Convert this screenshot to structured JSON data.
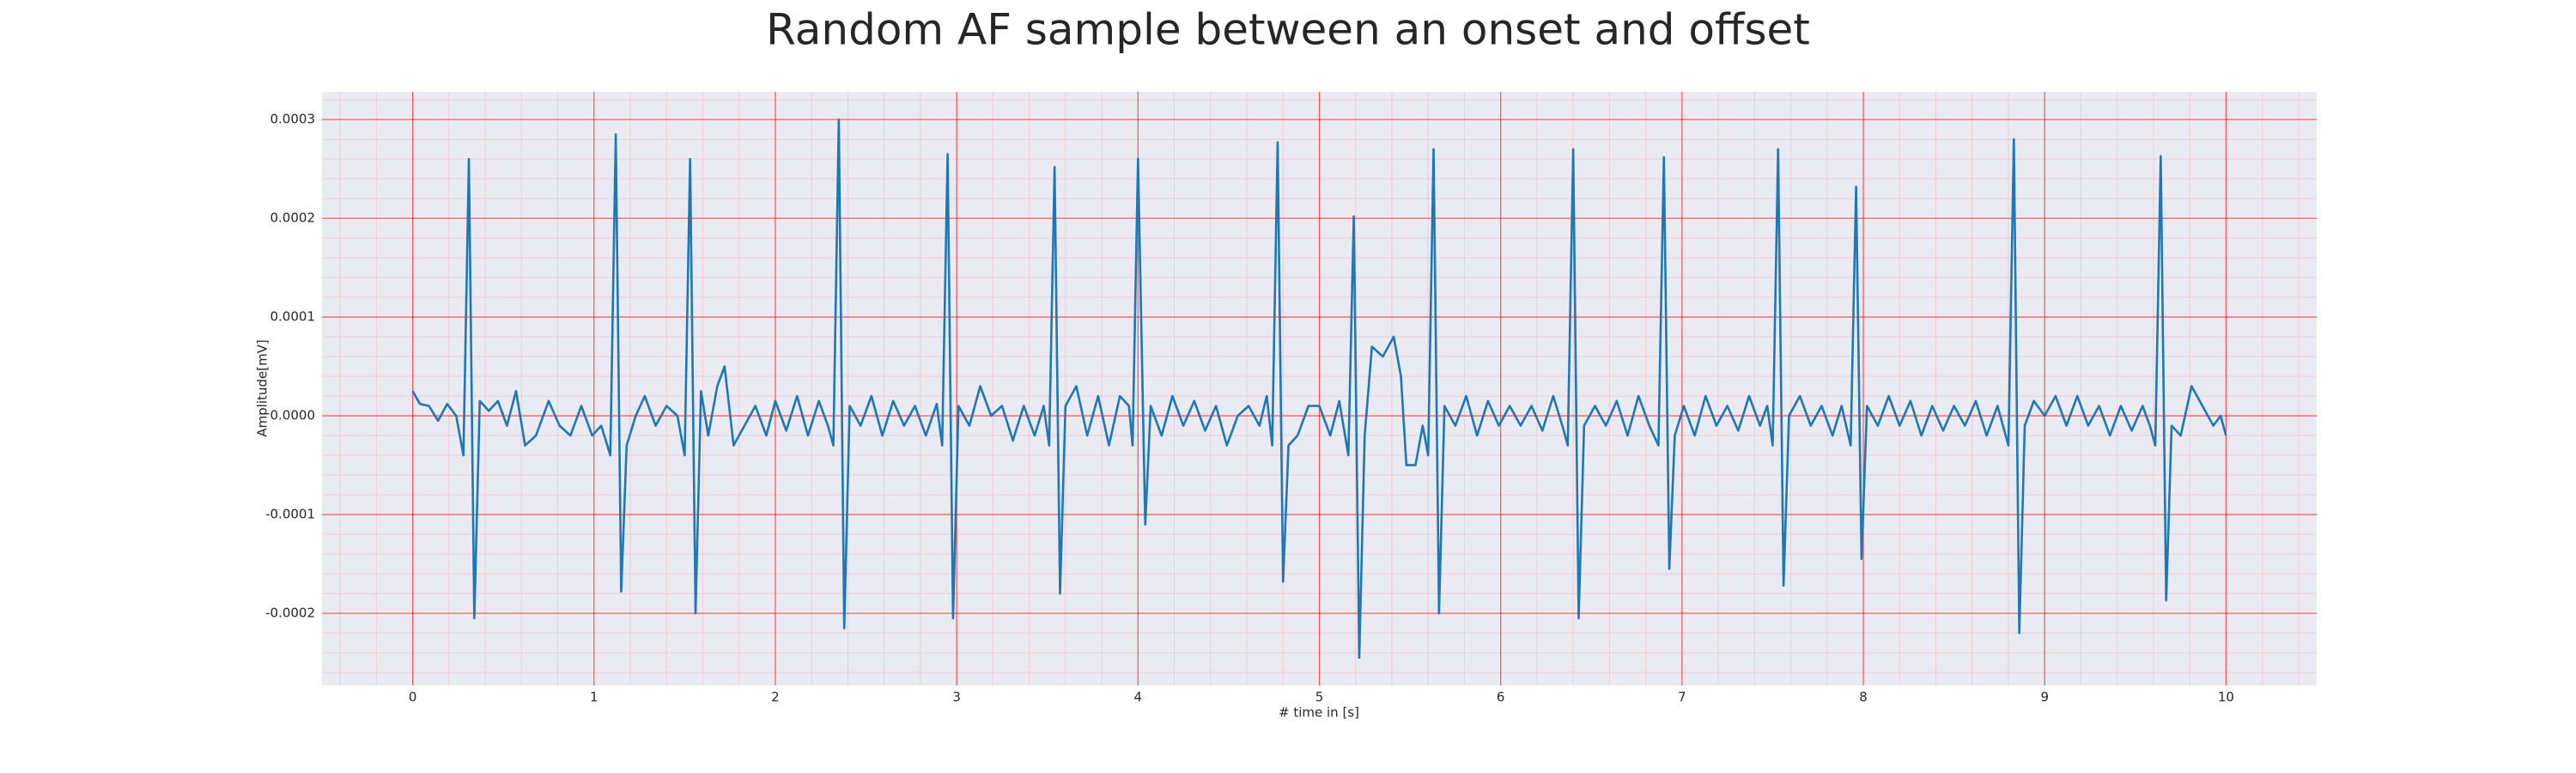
{
  "chart_data": {
    "type": "line",
    "title": "Random AF sample between an onset and offset",
    "xlabel": "# time in [s]",
    "ylabel": "Amplitude[mV]",
    "color": "#1f77b4",
    "grid": true,
    "grid_color": "#ff0000",
    "minor_grid": true,
    "xlim": [
      -0.5,
      10.5
    ],
    "xticks": [
      0,
      1,
      2,
      3,
      4,
      5,
      6,
      7,
      8,
      9,
      10
    ],
    "ylim": [
      -0.000273,
      0.000328
    ],
    "yticks": [
      {
        "value": -0.0002,
        "label": "-0.0002"
      },
      {
        "value": -0.0001,
        "label": "-0.0001"
      },
      {
        "value": 0,
        "label": "0.0000"
      },
      {
        "value": 0.0001,
        "label": "0.0001"
      },
      {
        "value": 0.0002,
        "label": "0.0002"
      },
      {
        "value": 0.0003,
        "label": "0.0003"
      }
    ],
    "x": [
      0,
      0.04,
      0.09,
      0.14,
      0.19,
      0.24,
      0.28,
      0.31,
      0.34,
      0.37,
      0.42,
      0.47,
      0.52,
      0.57,
      0.62,
      0.68,
      0.75,
      0.81,
      0.87,
      0.93,
      0.99,
      1.04,
      1.09,
      1.12,
      1.15,
      1.18,
      1.23,
      1.28,
      1.34,
      1.4,
      1.46,
      1.5,
      1.53,
      1.56,
      1.59,
      1.63,
      1.68,
      1.72,
      1.77,
      1.83,
      1.89,
      1.95,
      2.0,
      2.06,
      2.12,
      2.18,
      2.24,
      2.29,
      2.32,
      2.35,
      2.38,
      2.41,
      2.47,
      2.53,
      2.59,
      2.65,
      2.71,
      2.77,
      2.83,
      2.89,
      2.92,
      2.95,
      2.98,
      3.01,
      3.07,
      3.13,
      3.19,
      3.25,
      3.31,
      3.37,
      3.43,
      3.48,
      3.51,
      3.54,
      3.57,
      3.6,
      3.66,
      3.72,
      3.78,
      3.84,
      3.9,
      3.95,
      3.97,
      4.0,
      4.04,
      4.07,
      4.13,
      4.19,
      4.25,
      4.31,
      4.37,
      4.43,
      4.49,
      4.55,
      4.61,
      4.67,
      4.71,
      4.74,
      4.77,
      4.8,
      4.83,
      4.88,
      4.94,
      5.0,
      5.06,
      5.11,
      5.16,
      5.19,
      5.22,
      5.25,
      5.29,
      5.35,
      5.41,
      5.45,
      5.48,
      5.53,
      5.57,
      5.6,
      5.63,
      5.66,
      5.69,
      5.75,
      5.81,
      5.87,
      5.93,
      5.99,
      6.05,
      6.11,
      6.17,
      6.23,
      6.29,
      6.34,
      6.37,
      6.4,
      6.43,
      6.46,
      6.52,
      6.58,
      6.64,
      6.7,
      6.76,
      6.82,
      6.87,
      6.9,
      6.93,
      6.96,
      7.01,
      7.07,
      7.13,
      7.19,
      7.25,
      7.31,
      7.37,
      7.43,
      7.47,
      7.5,
      7.53,
      7.56,
      7.59,
      7.65,
      7.71,
      7.77,
      7.83,
      7.88,
      7.93,
      7.96,
      7.99,
      8.02,
      8.08,
      8.14,
      8.2,
      8.26,
      8.32,
      8.38,
      8.44,
      8.5,
      8.56,
      8.62,
      8.68,
      8.74,
      8.8,
      8.83,
      8.86,
      8.89,
      8.94,
      9.0,
      9.06,
      9.12,
      9.18,
      9.24,
      9.3,
      9.36,
      9.42,
      9.48,
      9.54,
      9.58,
      9.61,
      9.64,
      9.67,
      9.7,
      9.75,
      9.81,
      9.87,
      9.93,
      9.97,
      10.0
    ],
    "values": [
      2.5e-05,
      1.2e-05,
      1e-05,
      -5e-06,
      1.2e-05,
      0,
      -4e-05,
      0.00026,
      -0.000205,
      1.5e-05,
      5e-06,
      1.5e-05,
      -1e-05,
      2.5e-05,
      -3e-05,
      -2e-05,
      1.5e-05,
      -1e-05,
      -2e-05,
      1e-05,
      -2e-05,
      -1e-05,
      -4e-05,
      0.000285,
      -0.000178,
      -3e-05,
      0,
      2e-05,
      -1e-05,
      1e-05,
      0,
      -4e-05,
      0.00026,
      -0.0002,
      2.5e-05,
      -2e-05,
      3e-05,
      5e-05,
      -3e-05,
      -1e-05,
      1e-05,
      -2e-05,
      1.5e-05,
      -1.5e-05,
      2e-05,
      -2e-05,
      1.5e-05,
      -1e-05,
      -3e-05,
      0.0003,
      -0.000215,
      1e-05,
      -1e-05,
      2e-05,
      -2e-05,
      1.5e-05,
      -1e-05,
      1e-05,
      -2e-05,
      1.2e-05,
      -3e-05,
      0.000265,
      -0.000205,
      1e-05,
      -1e-05,
      3e-05,
      0,
      1e-05,
      -2.5e-05,
      1e-05,
      -2e-05,
      1e-05,
      -3e-05,
      0.000252,
      -0.00018,
      1e-05,
      3e-05,
      -2e-05,
      2e-05,
      -3e-05,
      2e-05,
      1e-05,
      -3e-05,
      0.00026,
      -0.00011,
      1e-05,
      -2e-05,
      2e-05,
      -1e-05,
      1.5e-05,
      -1.5e-05,
      1e-05,
      -3e-05,
      0,
      1e-05,
      -1e-05,
      2e-05,
      -3e-05,
      0.000277,
      -0.000168,
      -3e-05,
      -2e-05,
      1e-05,
      1e-05,
      -2e-05,
      1.5e-05,
      -4e-05,
      0.000202,
      -0.000245,
      -2e-05,
      7e-05,
      6e-05,
      8e-05,
      4e-05,
      -5e-05,
      -5e-05,
      -1e-05,
      -4e-05,
      0.00027,
      -0.0002,
      1e-05,
      -1e-05,
      2e-05,
      -2e-05,
      1.5e-05,
      -1e-05,
      1e-05,
      -1e-05,
      1e-05,
      -1.5e-05,
      2e-05,
      -1e-05,
      -3e-05,
      0.00027,
      -0.000205,
      -1e-05,
      1e-05,
      -1e-05,
      1.5e-05,
      -2e-05,
      2e-05,
      -1e-05,
      -3e-05,
      0.000262,
      -0.000155,
      -2e-05,
      1e-05,
      -2e-05,
      2e-05,
      -1e-05,
      1e-05,
      -1.5e-05,
      2e-05,
      -1e-05,
      1e-05,
      -3e-05,
      0.00027,
      -0.000172,
      0,
      2e-05,
      -1e-05,
      1e-05,
      -2e-05,
      1e-05,
      -3e-05,
      0.000232,
      -0.000145,
      1e-05,
      -1e-05,
      2e-05,
      -1e-05,
      1.5e-05,
      -2e-05,
      1e-05,
      -1.5e-05,
      1e-05,
      -1e-05,
      1.5e-05,
      -2e-05,
      1e-05,
      -3e-05,
      0.00028,
      -0.00022,
      -1e-05,
      1.5e-05,
      0,
      2e-05,
      -1e-05,
      2e-05,
      -1e-05,
      1e-05,
      -2e-05,
      1e-05,
      -1.5e-05,
      1e-05,
      -1e-05,
      -3e-05,
      0.000263,
      -0.000187,
      -1e-05,
      -2e-05,
      3e-05,
      1e-05,
      -1e-05,
      0,
      -2e-05
    ]
  }
}
